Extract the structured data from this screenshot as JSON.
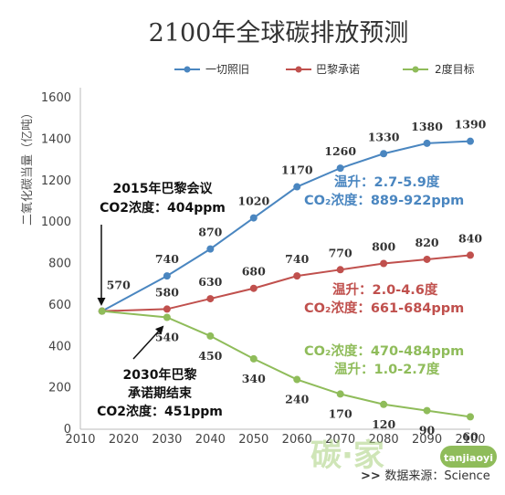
{
  "chart_data": {
    "type": "line",
    "title": "2100年全球碳排放预测",
    "ylabel": "二氧化碳当量（亿吨）",
    "xlabel": "",
    "x": [
      2015,
      2020,
      2030,
      2040,
      2050,
      2060,
      2070,
      2080,
      2090,
      2100
    ],
    "x_ticks": [
      "2010",
      "2020",
      "2030",
      "2040",
      "2050",
      "2060",
      "2070",
      "2080",
      "2090",
      "2100"
    ],
    "y_ticks": [
      "0",
      "200",
      "400",
      "600",
      "800",
      "1000",
      "1200",
      "1400",
      "1600"
    ],
    "xlim": [
      2010,
      2100
    ],
    "ylim": [
      0,
      1600
    ],
    "grid": false,
    "legend_position": "top",
    "series": [
      {
        "name": "一切照旧",
        "color": "#4a86c0",
        "x": [
          2015,
          2030,
          2040,
          2050,
          2060,
          2070,
          2080,
          2090,
          2100
        ],
        "values": [
          570,
          740,
          870,
          1020,
          1170,
          1260,
          1330,
          1380,
          1390
        ],
        "labels": [
          "570",
          "740",
          "870",
          "1020",
          "1170",
          "1260",
          "1330",
          "1380",
          "1390"
        ]
      },
      {
        "name": "巴黎承诺",
        "color": "#c0504d",
        "x": [
          2015,
          2030,
          2040,
          2050,
          2060,
          2070,
          2080,
          2090,
          2100
        ],
        "values": [
          570,
          580,
          630,
          680,
          740,
          770,
          800,
          820,
          840
        ],
        "labels": [
          "",
          "580",
          "630",
          "680",
          "740",
          "770",
          "800",
          "820",
          "840"
        ]
      },
      {
        "name": "2度目标",
        "color": "#8fbc5a",
        "x": [
          2015,
          2030,
          2040,
          2050,
          2060,
          2070,
          2080,
          2090,
          2100
        ],
        "values": [
          570,
          540,
          450,
          340,
          240,
          170,
          120,
          90,
          60
        ],
        "labels": [
          "",
          "540",
          "450",
          "340",
          "240",
          "170",
          "120",
          "90",
          "60"
        ]
      }
    ],
    "annotations": {
      "paris2015": [
        "2015年巴黎会议",
        "CO2浓度：404ppm"
      ],
      "paris2030": [
        "2030年巴黎",
        "承诺期结束",
        "CO2浓度：451ppm"
      ],
      "bau": [
        "温升：2.7-5.9度",
        "CO₂浓度：889-922ppm"
      ],
      "pledge": [
        "温升：2.0-4.6度",
        "CO₂浓度：661-684ppm"
      ],
      "two_deg": [
        "CO₂浓度：470-484ppm",
        "温升：1.0-2.7度"
      ]
    }
  },
  "watermark": {
    "text": "碳·家",
    "badge": "tanjiaoyi"
  },
  "source": "数据来源：Science"
}
